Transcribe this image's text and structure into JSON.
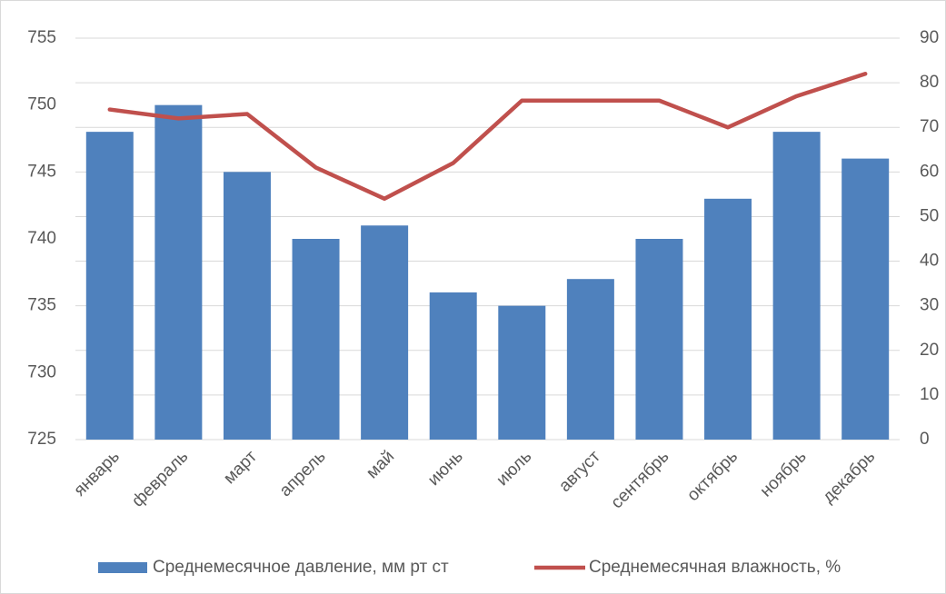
{
  "chart_data": {
    "type": "bar",
    "categories": [
      "январь",
      "февраль",
      "март",
      "апрель",
      "май",
      "июнь",
      "июль",
      "август",
      "сентябрь",
      "октябрь",
      "ноябрь",
      "декабрь"
    ],
    "series": [
      {
        "name": "Среднемесячное давление, мм рт ст",
        "type": "bar",
        "color": "#4f81bd",
        "values": [
          748,
          750,
          745,
          740,
          741,
          736,
          735,
          737,
          740,
          743,
          748,
          746
        ]
      },
      {
        "name": "Среднемесячная влажность, %",
        "type": "line",
        "axis": "y2",
        "color": "#c0504d",
        "values": [
          74,
          72,
          73,
          61,
          54,
          62,
          76,
          76,
          76,
          70,
          77,
          82
        ]
      }
    ],
    "ylim": [
      725,
      755
    ],
    "yticks": [
      725,
      730,
      735,
      740,
      745,
      750,
      755
    ],
    "y2lim": [
      0,
      90
    ],
    "y2ticks": [
      0,
      10,
      20,
      30,
      40,
      50,
      60,
      70,
      80,
      90
    ],
    "grid": true,
    "legend": "bottom"
  }
}
